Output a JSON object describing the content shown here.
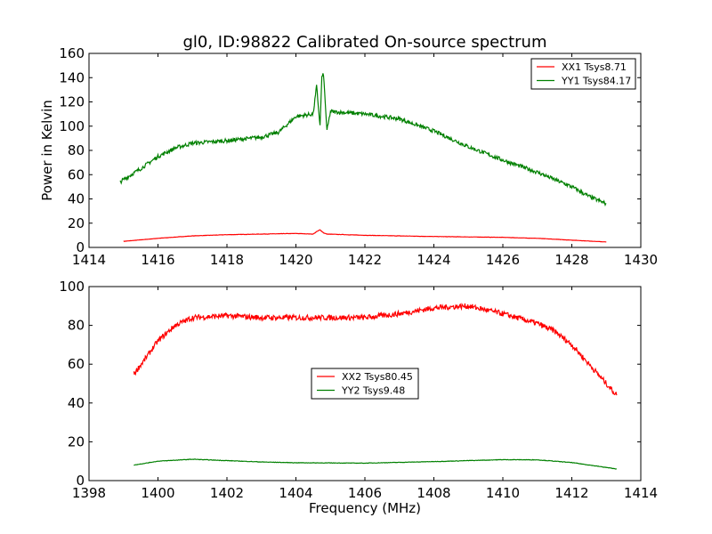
{
  "chart_data": [
    {
      "type": "line",
      "title": "gl0, ID:98822 Calibrated On-source spectrum",
      "xlabel": "",
      "ylabel": "Power in Kelvin",
      "xlim": [
        1414,
        1430
      ],
      "ylim": [
        0,
        160
      ],
      "xticks": [
        1414,
        1416,
        1418,
        1420,
        1422,
        1424,
        1426,
        1428,
        1430
      ],
      "yticks": [
        0,
        20,
        40,
        60,
        80,
        100,
        120,
        140,
        160
      ],
      "grid": false,
      "legend_placement": "top-right",
      "series": [
        {
          "name": "XX1 Tsys8.71",
          "color": "#ff0000",
          "x": [
            1415,
            1416,
            1417,
            1418,
            1419,
            1420,
            1420.5,
            1420.6,
            1420.7,
            1420.8,
            1420.9,
            1422,
            1424,
            1426,
            1427,
            1428,
            1429
          ],
          "y": [
            5,
            7.5,
            9.5,
            10.5,
            11,
            11.5,
            11,
            13,
            14.5,
            12,
            11,
            10,
            9,
            8.3,
            7.5,
            6,
            4.5
          ]
        },
        {
          "name": "YY1 Tsys84.17",
          "color": "#008000",
          "x": [
            1414.9,
            1415.5,
            1416,
            1416.5,
            1417,
            1418,
            1419,
            1419.5,
            1420,
            1420.5,
            1420.6,
            1420.7,
            1420.75,
            1420.8,
            1420.9,
            1421,
            1422,
            1423,
            1424,
            1425,
            1426,
            1427,
            1428,
            1428.5,
            1429
          ],
          "y": [
            54,
            65,
            75,
            82,
            86,
            88,
            91,
            95,
            108,
            110,
            133,
            100,
            140,
            143,
            96,
            112,
            110,
            106,
            96,
            83,
            72,
            62,
            50,
            42,
            36
          ]
        }
      ]
    },
    {
      "type": "line",
      "title": "",
      "xlabel": "Frequency (MHz)",
      "ylabel": "",
      "xlim": [
        1398,
        1414
      ],
      "ylim": [
        0,
        100
      ],
      "xticks": [
        1398,
        1400,
        1402,
        1404,
        1406,
        1408,
        1410,
        1412,
        1414
      ],
      "yticks": [
        0,
        20,
        40,
        60,
        80,
        100
      ],
      "grid": false,
      "legend_placement": "center",
      "series": [
        {
          "name": "XX2 Tsys80.45",
          "color": "#ff0000",
          "x": [
            1399.3,
            1399.6,
            1400,
            1400.5,
            1401,
            1402,
            1403,
            1404,
            1405,
            1406,
            1407,
            1408,
            1409,
            1410,
            1411,
            1411.5,
            1412,
            1412.5,
            1413,
            1413.3
          ],
          "y": [
            55,
            62,
            72,
            80,
            84,
            85,
            84,
            84,
            84,
            84,
            86,
            89,
            90,
            86,
            81,
            77,
            70,
            60,
            50,
            44
          ]
        },
        {
          "name": "YY2 Tsys9.48",
          "color": "#008000",
          "x": [
            1399.3,
            1400,
            1401,
            1402,
            1403,
            1404,
            1406,
            1408,
            1410,
            1411,
            1412,
            1413.3
          ],
          "y": [
            8,
            10,
            11,
            10.3,
            9.6,
            9.2,
            9,
            9.8,
            10.8,
            10.7,
            9.3,
            6
          ]
        }
      ]
    }
  ]
}
